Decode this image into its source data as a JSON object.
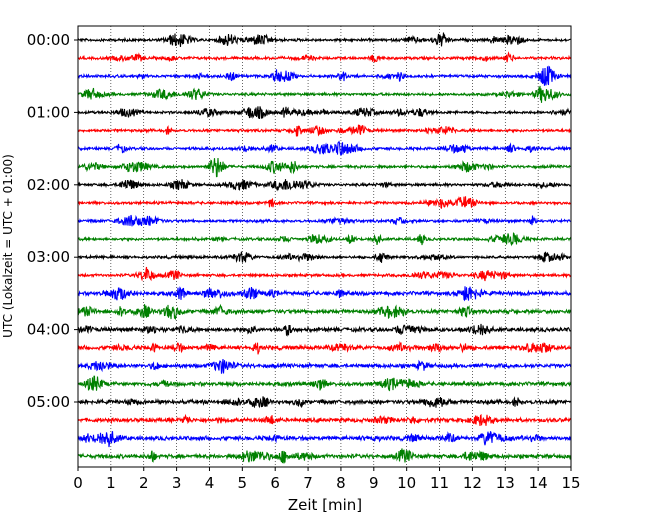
{
  "chart_data": {
    "type": "line",
    "subtype": "helicorder",
    "xlabel": "Zeit  [min]",
    "ylabel": "UTC (Lokalzeit = UTC + 01:00)",
    "xlim": [
      0,
      15
    ],
    "x_ticks": [
      "0",
      "1",
      "2",
      "3",
      "4",
      "5",
      "6",
      "7",
      "8",
      "9",
      "10",
      "11",
      "12",
      "13",
      "14",
      "15"
    ],
    "y_tick_labels": [
      "00:00",
      "01:00",
      "02:00",
      "03:00",
      "04:00",
      "05:00"
    ],
    "trace_interval_minutes": 15,
    "trace_count": 24,
    "trace_colors": [
      "#000000",
      "#ff0000",
      "#0000ff",
      "#008000"
    ],
    "vertical_grid": true,
    "grid_style": "dotted"
  }
}
